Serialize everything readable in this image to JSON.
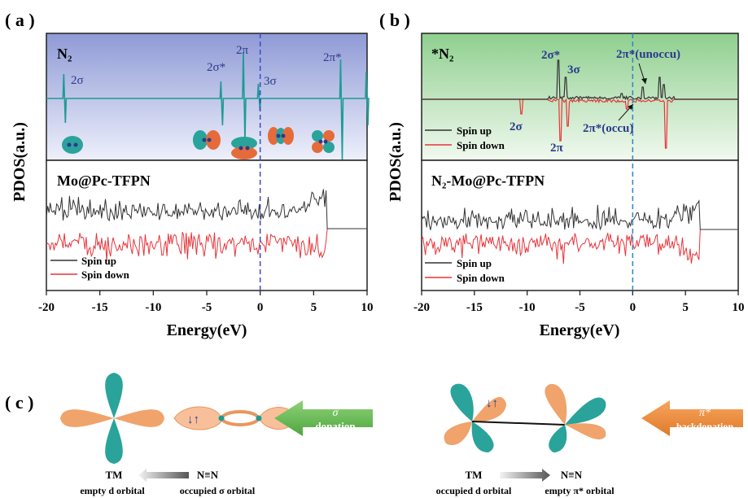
{
  "panel_labels": {
    "a": "( a )",
    "b": "( b )",
    "c": "( c )"
  },
  "colors": {
    "teal": "#1f9a95",
    "spin_up": "#333333",
    "spin_down": "#e8343a",
    "navy": "#2c3a8c",
    "panel_a_top": "#8f9ad6",
    "panel_a_bottom": "#eef0fb",
    "panel_b_top": "#8fcf8f",
    "panel_b_bottom": "#f1f9ef",
    "orange": "#f0a36b",
    "green_arrow": "#62b552",
    "orange_arrow": "#ec8a3a"
  },
  "chart_data": [
    {
      "type": "line",
      "panel": "a",
      "ylabel": "PDOS(a.u.)",
      "xlabel": "Energy(eV)",
      "xlim": [
        -20,
        10
      ],
      "xticks": [
        -20,
        -15,
        -10,
        -5,
        0,
        5,
        10
      ],
      "fermi_level": 0,
      "top": {
        "title": "N₂",
        "series": [
          {
            "name": "N₂",
            "color": "#1f9a95",
            "peaks": [
              [
                -18.3,
                0.5,
                -0.5
              ],
              [
                -3.6,
                0.35,
                -0.55
              ],
              [
                -1.5,
                0.95,
                -0.9
              ],
              [
                -0.1,
                0.3,
                -0.25
              ],
              [
                7.6,
                0.8,
                -1.25
              ],
              [
                10.0,
                0.55,
                -0.55
              ]
            ]
          }
        ],
        "annotations": [
          {
            "text": "2σ",
            "x": -18.3
          },
          {
            "text": "2σ*",
            "x": -3.6
          },
          {
            "text": "2π",
            "x": -1.5
          },
          {
            "text": "3σ",
            "x": -0.1
          },
          {
            "text": "2π*",
            "x": 7.6
          }
        ]
      },
      "bottom": {
        "title": "Mo@Pc-TFPN",
        "legend": [
          "Spin up",
          "Spin down"
        ],
        "legend_position": "bottom-left",
        "series": [
          {
            "name": "Spin up",
            "color": "#333333"
          },
          {
            "name": "Spin down",
            "color": "#e8343a"
          }
        ],
        "band_edge": 6.2
      }
    },
    {
      "type": "line",
      "panel": "b",
      "ylabel": "PDOS(a.u.)",
      "xlabel": "Energy(eV)",
      "xlim": [
        -20,
        10
      ],
      "xticks": [
        -20,
        -15,
        -10,
        -5,
        0,
        5,
        10
      ],
      "fermi_level": 0,
      "top": {
        "title": "*N₂",
        "legend": [
          "Spin up",
          "Spin down"
        ],
        "legend_position": "bottom-left",
        "series": [
          {
            "name": "Spin up",
            "color": "#333333",
            "peaks": [
              [
                -7.0,
                0.8
              ],
              [
                -6.3,
                0.45
              ],
              [
                -1.0,
                0.12
              ],
              [
                1.0,
                0.25
              ],
              [
                2.6,
                0.45
              ],
              [
                3.0,
                0.3
              ]
            ]
          },
          {
            "name": "Spin down",
            "color": "#e8343a",
            "peaks": [
              [
                -10.5,
                -0.3
              ],
              [
                -6.8,
                -0.85
              ],
              [
                -6.1,
                -0.55
              ],
              [
                -0.5,
                -0.2
              ],
              [
                3.2,
                -1.0
              ]
            ]
          }
        ],
        "annotations": [
          {
            "text": "2σ*"
          },
          {
            "text": "3σ"
          },
          {
            "text": "2π*(unoccu)"
          },
          {
            "text": "2σ"
          },
          {
            "text": "2π"
          },
          {
            "text": "2π*(occu)"
          }
        ]
      },
      "bottom": {
        "title": "N₂-Mo@Pc-TFPN",
        "legend": [
          "Spin up",
          "Spin down"
        ],
        "legend_position": "bottom-left",
        "series": [
          {
            "name": "Spin up",
            "color": "#333333"
          },
          {
            "name": "Spin down",
            "color": "#e8343a"
          }
        ],
        "band_edge": 6.3
      }
    }
  ],
  "diagram_c": {
    "left": {
      "arrow_label_symbol": "σ",
      "arrow_label_text": "donation",
      "tm": "TM",
      "nn": "N≡N",
      "caption_left": "empty d orbital",
      "caption_right": "occupied σ orbital",
      "electron_symbol": "↓↑"
    },
    "right": {
      "arrow_label_symbol": "π*",
      "arrow_label_text": "backdonation",
      "tm": "TM",
      "nn": "N≡N",
      "caption_left": "occupied d orbital",
      "caption_right": "empty π* orbital",
      "electron_symbol": "↓↑"
    }
  }
}
